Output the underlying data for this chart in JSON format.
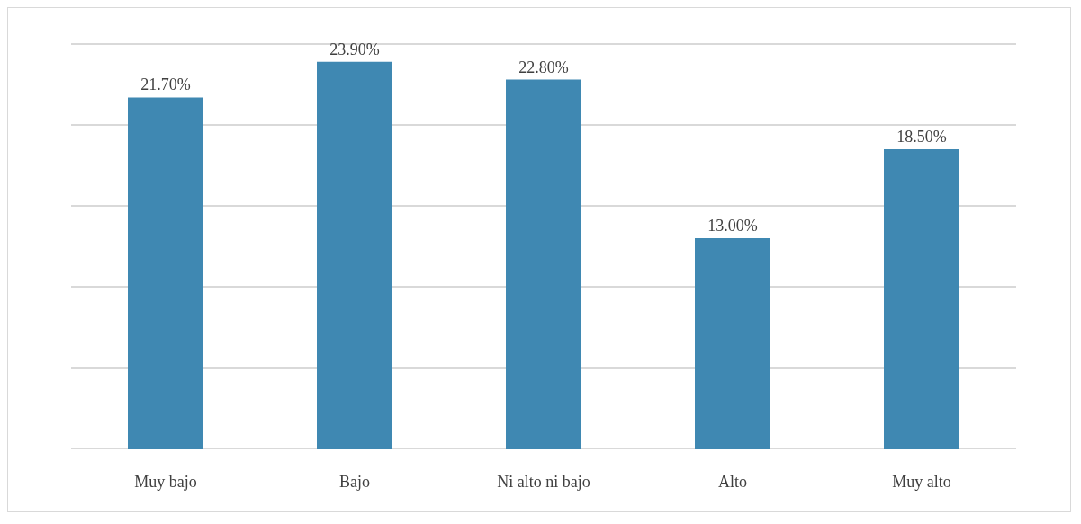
{
  "chart_data": {
    "type": "bar",
    "categories": [
      "Muy bajo",
      "Bajo",
      "Ni alto ni bajo",
      "Alto",
      "Muy alto"
    ],
    "values": [
      21.7,
      23.9,
      22.8,
      13.0,
      18.5
    ],
    "value_labels": [
      "21.70%",
      "23.90%",
      "22.80%",
      "13.00%",
      "18.50%"
    ],
    "color": "#3f88b2",
    "ylim": [
      0,
      25
    ],
    "yticks": [
      {
        "value": 0,
        "label": null
      },
      {
        "value": 5,
        "label": null
      },
      {
        "value": 10,
        "label": null
      },
      {
        "value": 15,
        "label": null
      },
      {
        "value": 20,
        "label": null
      },
      {
        "value": 25,
        "label": null
      }
    ],
    "grid": "y",
    "tick_labels": "x"
  }
}
